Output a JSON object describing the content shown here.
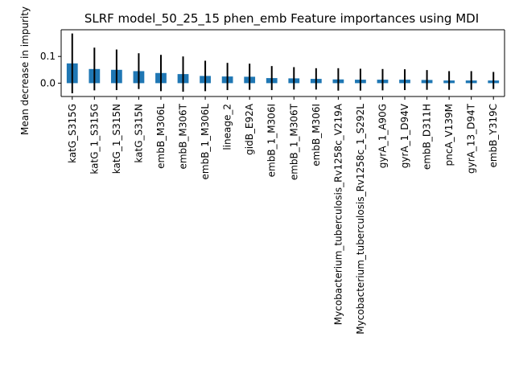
{
  "chart_data": {
    "type": "bar",
    "title": "SLRF model_50_25_15 phen_emb Feature importances using MDI",
    "xlabel": "",
    "ylabel": "Mean decrease in impurity",
    "ylim": [
      -0.05,
      0.2
    ],
    "yticks": [
      0.0,
      0.1
    ],
    "ytick_labels": [
      "0.0",
      "0.1"
    ],
    "grid": false,
    "bar_color": "#1f77b4",
    "errorbar_color": "#000000",
    "categories": [
      "katG_S315G",
      "katG_1_S315G",
      "katG_1_S315N",
      "katG_S315N",
      "embB_M306L",
      "embB_M306T",
      "embB_1_M306L",
      "lineage_2",
      "gidB_E92A",
      "embB_1_M306I",
      "embB_1_M306T",
      "embB_M306I",
      "Mycobacterium_tuberculosis_Rv1258c_V219A",
      "Mycobacterium_tuberculosis_Rv1258c_1_S292L",
      "gyrA_1_A90G",
      "gyrA_1_D94V",
      "embB_D311H",
      "pncA_V139M",
      "gyrA_13_D94T",
      "embB_Y319C"
    ],
    "values": [
      0.074,
      0.053,
      0.05,
      0.045,
      0.038,
      0.034,
      0.027,
      0.025,
      0.024,
      0.019,
      0.018,
      0.016,
      0.014,
      0.013,
      0.013,
      0.013,
      0.012,
      0.01,
      0.01,
      0.01
    ],
    "errors": [
      0.112,
      0.08,
      0.076,
      0.067,
      0.068,
      0.066,
      0.057,
      0.051,
      0.049,
      0.045,
      0.042,
      0.04,
      0.042,
      0.041,
      0.04,
      0.039,
      0.037,
      0.035,
      0.035,
      0.032
    ]
  }
}
